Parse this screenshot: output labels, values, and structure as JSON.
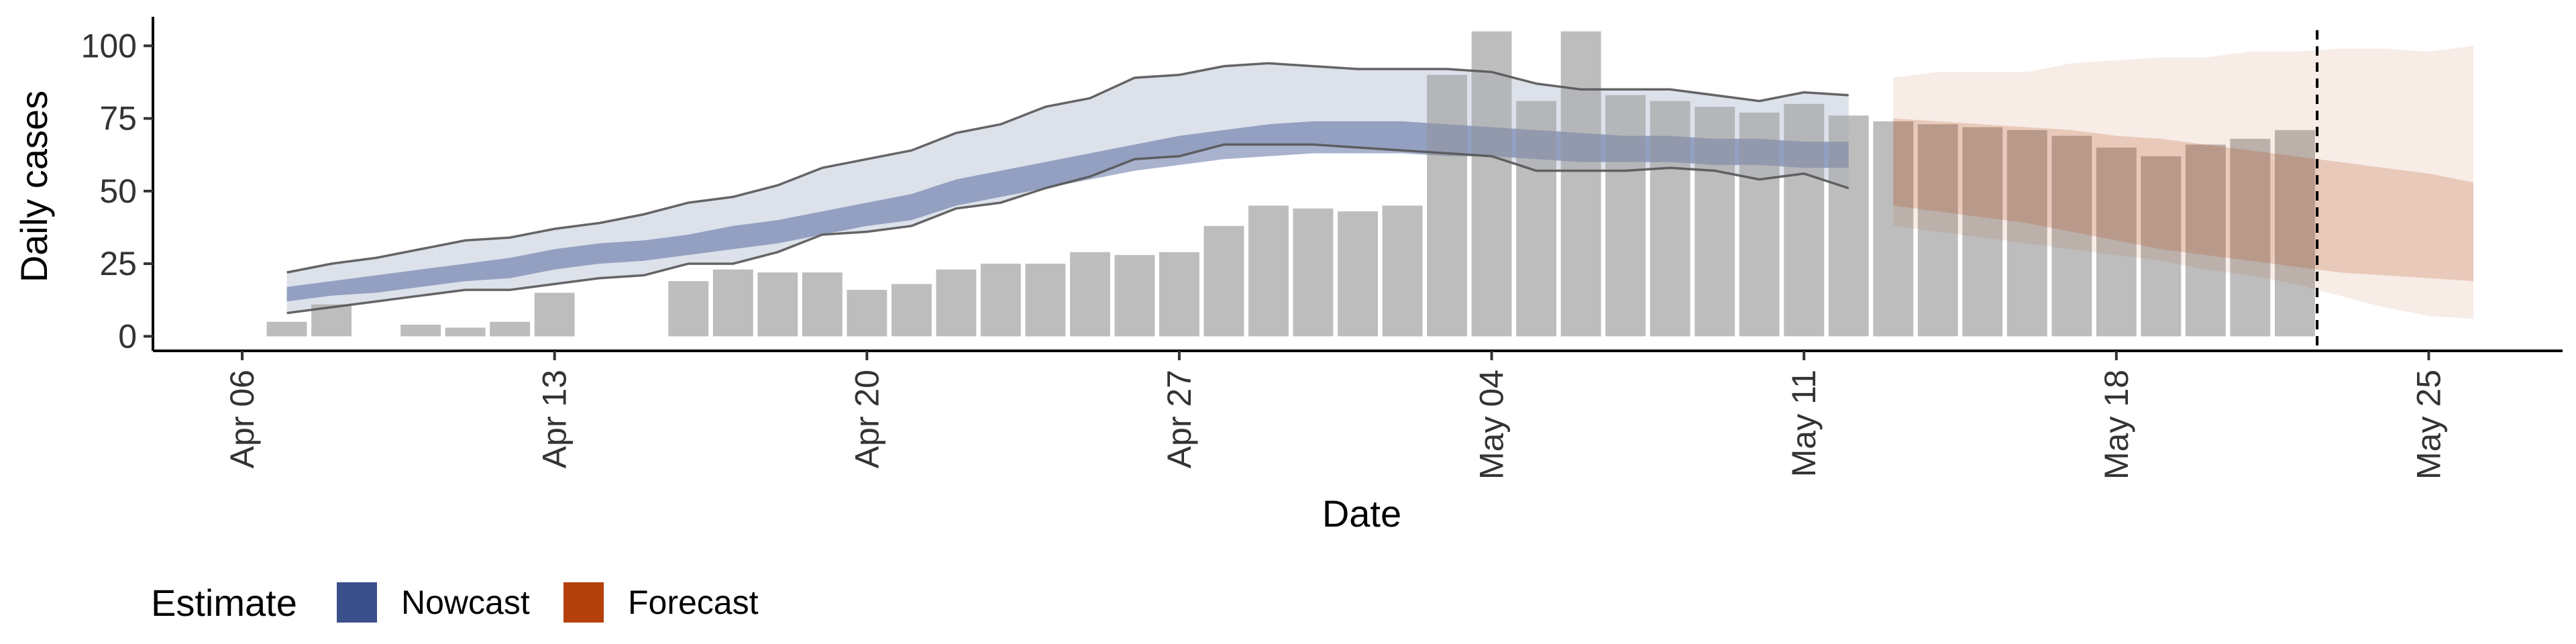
{
  "chart_data": {
    "type": "bar",
    "xlabel": "Date",
    "ylabel": "Daily cases",
    "x_ticks": [
      "Apr 06",
      "Apr 13",
      "Apr 20",
      "Apr 27",
      "May 04",
      "May 11",
      "May 18",
      "May 25"
    ],
    "y_ticks": [
      0,
      25,
      50,
      75,
      100
    ],
    "ylim": [
      -5,
      110
    ],
    "xlim": [
      "2020-04-04",
      "2020-05-28"
    ],
    "grid": false,
    "legend": {
      "title": "Estimate",
      "position": "bottom-left",
      "items": [
        {
          "label": "Nowcast",
          "color": "#3b4f8b"
        },
        {
          "label": "Forecast",
          "color": "#b4400c"
        }
      ]
    },
    "vline_date": "2020-05-22",
    "bars": {
      "color": "#bdbdbd",
      "dates": [
        "2020-04-07",
        "2020-04-08",
        "2020-04-10",
        "2020-04-11",
        "2020-04-12",
        "2020-04-13",
        "2020-04-16",
        "2020-04-17",
        "2020-04-18",
        "2020-04-19",
        "2020-04-20",
        "2020-04-21",
        "2020-04-22",
        "2020-04-23",
        "2020-04-24",
        "2020-04-25",
        "2020-04-26",
        "2020-04-27",
        "2020-04-28",
        "2020-04-29",
        "2020-04-30",
        "2020-05-01",
        "2020-05-02",
        "2020-05-03",
        "2020-05-04",
        "2020-05-05",
        "2020-05-06",
        "2020-05-07",
        "2020-05-08",
        "2020-05-09",
        "2020-05-10",
        "2020-05-11",
        "2020-05-12",
        "2020-05-13",
        "2020-05-14",
        "2020-05-15",
        "2020-05-16",
        "2020-05-17",
        "2020-05-18",
        "2020-05-19",
        "2020-05-20",
        "2020-05-21",
        "2020-05-22"
      ],
      "values": [
        5,
        11,
        4,
        3,
        5,
        15,
        19,
        23,
        22,
        22,
        16,
        18,
        23,
        25,
        25,
        29,
        28,
        29,
        38,
        45,
        44,
        43,
        45,
        90,
        105,
        81,
        105,
        83,
        81,
        79,
        77,
        80,
        76,
        74,
        73,
        72,
        71,
        69,
        65,
        62,
        66,
        68,
        71
      ]
    },
    "nowcast": {
      "dates": [
        "2020-04-07",
        "2020-04-08",
        "2020-04-09",
        "2020-04-10",
        "2020-04-11",
        "2020-04-12",
        "2020-04-13",
        "2020-04-14",
        "2020-04-15",
        "2020-04-16",
        "2020-04-17",
        "2020-04-18",
        "2020-04-19",
        "2020-04-20",
        "2020-04-21",
        "2020-04-22",
        "2020-04-23",
        "2020-04-24",
        "2020-04-25",
        "2020-04-26",
        "2020-04-27",
        "2020-04-28",
        "2020-04-29",
        "2020-04-30",
        "2020-05-01",
        "2020-05-02",
        "2020-05-03",
        "2020-05-04",
        "2020-05-05",
        "2020-05-06",
        "2020-05-07",
        "2020-05-08",
        "2020-05-09",
        "2020-05-10",
        "2020-05-11",
        "2020-05-12"
      ],
      "outer_upper": [
        22,
        25,
        27,
        30,
        33,
        34,
        37,
        39,
        42,
        46,
        48,
        52,
        58,
        61,
        64,
        70,
        73,
        79,
        82,
        89,
        90,
        93,
        94,
        93,
        92,
        92,
        92,
        91,
        87,
        85,
        85,
        85,
        83,
        81,
        84,
        83
      ],
      "outer_lower": [
        8,
        10,
        12,
        14,
        16,
        16,
        18,
        20,
        21,
        25,
        25,
        29,
        35,
        36,
        38,
        44,
        46,
        51,
        55,
        61,
        62,
        66,
        66,
        66,
        65,
        64,
        63,
        62,
        57,
        57,
        57,
        58,
        57,
        54,
        56,
        51
      ],
      "inner_upper": [
        17,
        19,
        21,
        23,
        25,
        27,
        30,
        32,
        33,
        35,
        38,
        40,
        43,
        46,
        49,
        54,
        57,
        60,
        63,
        66,
        69,
        71,
        73,
        74,
        74,
        74,
        73,
        72,
        71,
        70,
        69,
        69,
        68,
        68,
        67,
        67
      ],
      "inner_lower": [
        12,
        14,
        15,
        17,
        19,
        20,
        23,
        25,
        26,
        28,
        30,
        32,
        35,
        38,
        40,
        45,
        48,
        51,
        54,
        57,
        59,
        61,
        62,
        63,
        63,
        63,
        62,
        62,
        61,
        60,
        60,
        60,
        59,
        59,
        58,
        58
      ]
    },
    "forecast": {
      "dates": [
        "2020-05-13",
        "2020-05-14",
        "2020-05-15",
        "2020-05-16",
        "2020-05-17",
        "2020-05-18",
        "2020-05-19",
        "2020-05-20",
        "2020-05-21",
        "2020-05-22",
        "2020-05-23",
        "2020-05-24",
        "2020-05-25",
        "2020-05-26"
      ],
      "outer_upper": [
        89,
        91,
        91,
        91,
        94,
        95,
        96,
        96,
        98,
        98,
        99,
        99,
        98,
        100
      ],
      "outer_lower": [
        38,
        36,
        34,
        32,
        30,
        28,
        26,
        23,
        21,
        18,
        14,
        10,
        7,
        6
      ],
      "inner_upper": [
        75,
        74,
        73,
        72,
        71,
        69,
        68,
        66,
        64,
        62,
        60,
        58,
        56,
        53
      ],
      "inner_lower": [
        45,
        43,
        41,
        39,
        36,
        33,
        30,
        28,
        26,
        24,
        22,
        21,
        20,
        19
      ]
    }
  }
}
